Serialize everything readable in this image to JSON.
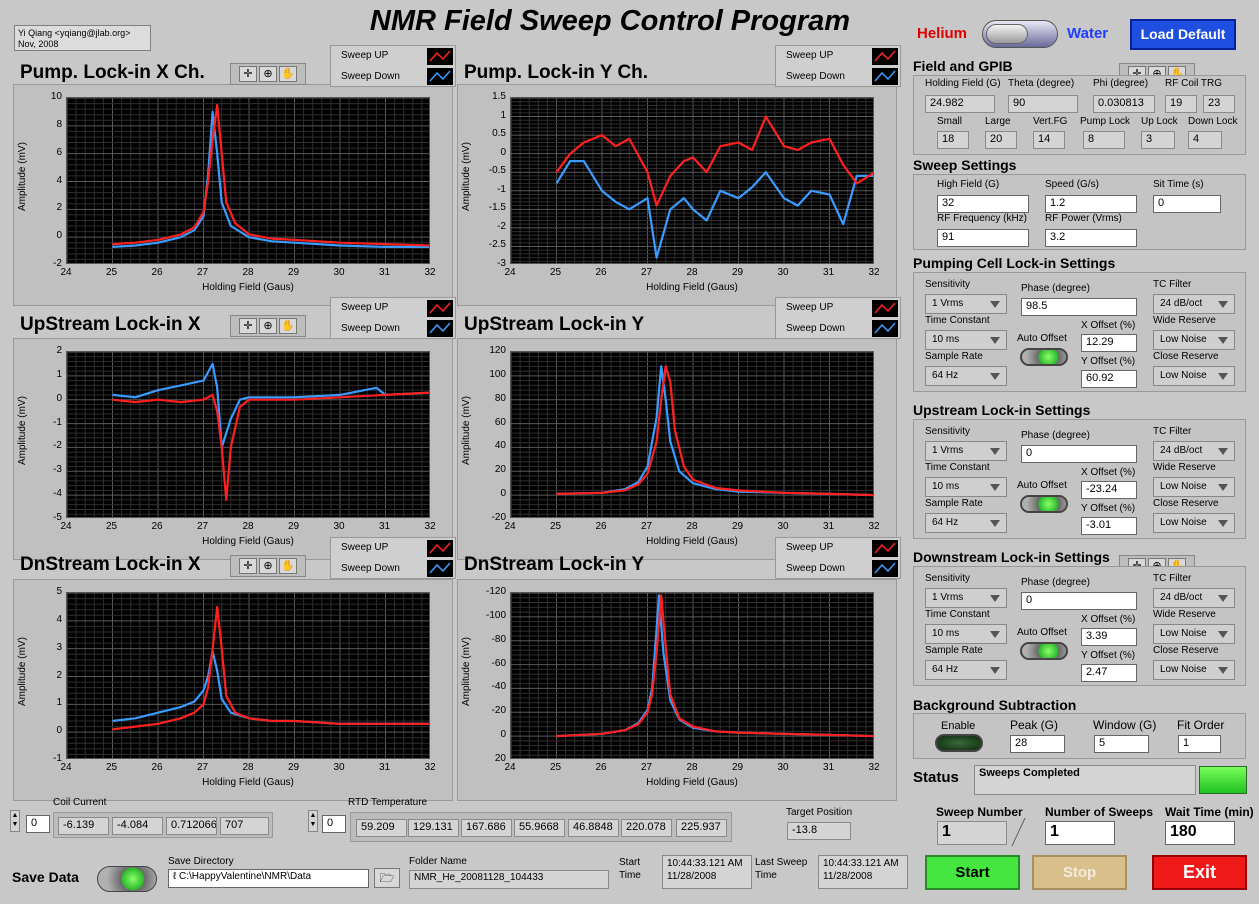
{
  "author": {
    "line1": "Yi Qiang <yqiang@jlab.org>",
    "line2": "Nov, 2008"
  },
  "app_title": "NMR Field Sweep Control Program",
  "mode": {
    "left": "Helium",
    "right": "Water",
    "load_default": "Load Default"
  },
  "legend": {
    "up": "Sweep UP",
    "down": "Sweep Down",
    "up_color": "#ff2020",
    "down_color": "#3a9cff"
  },
  "graphs": [
    {
      "title": "Pump. Lock-in X Ch.",
      "xlabel": "Holding Field (Gaus)",
      "ylabel": "Amplitude (mV)"
    },
    {
      "title": "Pump. Lock-in Y Ch.",
      "xlabel": "Holding Field (Gaus)",
      "ylabel": "Amplitude (mV)"
    },
    {
      "title": "UpStream Lock-in X",
      "xlabel": "Holding Field (Gaus)",
      "ylabel": "Amplitude (mV)"
    },
    {
      "title": "UpStream Lock-in Y",
      "xlabel": "Holding Field (Gaus)",
      "ylabel": "Amplitude (mV)"
    },
    {
      "title": "DnStream Lock-in X",
      "xlabel": "Holding Field (Gaus)",
      "ylabel": "Amplitude (mV)"
    },
    {
      "title": "DnStream Lock-in Y",
      "xlabel": "Holding Field (Gaus)",
      "ylabel": "Amplitude (mV)"
    }
  ],
  "chart_data": [
    {
      "type": "line",
      "title": "Pump. Lock-in X Ch.",
      "xlabel": "Holding Field (Gaus)",
      "ylabel": "Amplitude (mV)",
      "xlim": [
        24,
        32
      ],
      "ylim": [
        -2,
        10
      ],
      "xticks": [
        "24",
        "25",
        "26",
        "27",
        "28",
        "29",
        "30",
        "31",
        "32"
      ],
      "yticks": [
        "-2",
        "0",
        "2",
        "4",
        "6",
        "8",
        "10"
      ],
      "series": [
        {
          "name": "Sweep UP",
          "x": [
            25,
            25.5,
            26,
            26.5,
            26.8,
            27,
            27.1,
            27.2,
            27.3,
            27.4,
            27.5,
            27.7,
            28,
            28.5,
            29,
            30,
            31,
            32
          ],
          "y": [
            -0.5,
            -0.4,
            -0.2,
            0.2,
            0.7,
            1.8,
            4,
            7,
            9.5,
            6,
            2.5,
            1,
            0.2,
            -0.1,
            -0.2,
            -0.4,
            -0.5,
            -0.6
          ]
        },
        {
          "name": "Sweep Down",
          "x": [
            25,
            25.5,
            26,
            26.5,
            26.8,
            27,
            27.1,
            27.2,
            27.3,
            27.4,
            27.6,
            28,
            28.5,
            29,
            30,
            31,
            32
          ],
          "y": [
            -0.7,
            -0.6,
            -0.4,
            0,
            0.5,
            1.5,
            4.5,
            9,
            6,
            2.5,
            0.8,
            0,
            -0.3,
            -0.4,
            -0.6,
            -0.7,
            -0.7
          ]
        }
      ]
    },
    {
      "type": "line",
      "title": "Pump. Lock-in Y Ch.",
      "xlabel": "Holding Field (Gaus)",
      "ylabel": "Amplitude (mV)",
      "xlim": [
        24,
        32
      ],
      "ylim": [
        -3,
        1.5
      ],
      "xticks": [
        "24",
        "25",
        "26",
        "27",
        "28",
        "29",
        "30",
        "31",
        "32"
      ],
      "yticks": [
        "-3",
        "-2.5",
        "-2",
        "-1.5",
        "-1",
        "-0.5",
        "0",
        "0.5",
        "1",
        "1.5"
      ],
      "series": [
        {
          "name": "Sweep UP",
          "x": [
            25,
            25.3,
            25.6,
            26,
            26.3,
            26.6,
            27,
            27.2,
            27.5,
            27.8,
            28,
            28.3,
            28.6,
            29,
            29.3,
            29.6,
            30,
            30.3,
            30.6,
            31,
            31.3,
            31.6,
            32
          ],
          "y": [
            -0.5,
            0,
            0.3,
            0.5,
            0.2,
            0.4,
            -0.5,
            -1.4,
            -0.6,
            -0.2,
            -0.1,
            -0.5,
            0.2,
            0.3,
            0.1,
            1,
            0.2,
            0.1,
            0.3,
            0.4,
            -0.3,
            -0.8,
            -0.5
          ]
        },
        {
          "name": "Sweep Down",
          "x": [
            25,
            25.3,
            25.6,
            26,
            26.3,
            26.6,
            27,
            27.2,
            27.5,
            27.8,
            28,
            28.3,
            28.6,
            29,
            29.3,
            29.6,
            30,
            30.3,
            30.6,
            31,
            31.3,
            31.6,
            32
          ],
          "y": [
            -0.8,
            -0.2,
            -0.2,
            -1,
            -1.3,
            -1.5,
            -1.2,
            -2.8,
            -1.5,
            -1.2,
            -1.5,
            -1.8,
            -1,
            -1.2,
            -0.9,
            -0.5,
            -1.2,
            -1.4,
            -1,
            -1.1,
            -1.9,
            -0.6,
            -0.6
          ]
        }
      ]
    },
    {
      "type": "line",
      "title": "UpStream Lock-in X",
      "xlabel": "Holding Field (Gaus)",
      "ylabel": "Amplitude (mV)",
      "xlim": [
        24,
        32
      ],
      "ylim": [
        -5,
        2
      ],
      "xticks": [
        "24",
        "25",
        "26",
        "27",
        "28",
        "29",
        "30",
        "31",
        "32"
      ],
      "yticks": [
        "-5",
        "-4",
        "-3",
        "-2",
        "-1",
        "0",
        "1",
        "2"
      ],
      "series": [
        {
          "name": "Sweep UP",
          "x": [
            25,
            25.5,
            26,
            26.5,
            27,
            27.2,
            27.3,
            27.4,
            27.5,
            27.6,
            27.8,
            28,
            28.5,
            29,
            30,
            31,
            32
          ],
          "y": [
            0,
            -0.1,
            0,
            -0.1,
            0,
            0.2,
            -0.5,
            -2,
            -4.2,
            -2,
            -0.3,
            0,
            0,
            0,
            0.1,
            0.2,
            0.3
          ]
        },
        {
          "name": "Sweep Down",
          "x": [
            25,
            25.5,
            26,
            26.5,
            27,
            27.2,
            27.3,
            27.4,
            27.6,
            27.8,
            28,
            28.5,
            29,
            30,
            30.8,
            31,
            32
          ],
          "y": [
            0.2,
            0.1,
            0.4,
            0.6,
            0.8,
            1.5,
            0.5,
            -2,
            -0.8,
            0,
            0.1,
            0.1,
            0.1,
            0.2,
            0.5,
            0.2,
            0.3
          ]
        }
      ]
    },
    {
      "type": "line",
      "title": "UpStream Lock-in Y",
      "xlabel": "Holding Field (Gaus)",
      "ylabel": "Amplitude (mV)",
      "xlim": [
        24,
        32
      ],
      "ylim": [
        -20,
        120
      ],
      "xticks": [
        "24",
        "25",
        "26",
        "27",
        "28",
        "29",
        "30",
        "31",
        "32"
      ],
      "yticks": [
        "-20",
        "0",
        "20",
        "40",
        "60",
        "80",
        "100",
        "120"
      ],
      "series": [
        {
          "name": "Sweep UP",
          "x": [
            25,
            26,
            26.5,
            26.8,
            27,
            27.2,
            27.3,
            27.4,
            27.5,
            27.6,
            27.8,
            28,
            28.5,
            29,
            30,
            31,
            32
          ],
          "y": [
            1,
            2,
            4,
            9,
            18,
            45,
            80,
            108,
            95,
            55,
            24,
            13,
            6,
            4,
            2,
            1,
            0
          ]
        },
        {
          "name": "Sweep Down",
          "x": [
            25,
            26,
            26.5,
            26.8,
            27,
            27.2,
            27.3,
            27.4,
            27.5,
            27.7,
            28,
            28.5,
            29,
            30,
            31,
            32
          ],
          "y": [
            1,
            2,
            5,
            11,
            24,
            65,
            108,
            80,
            45,
            20,
            10,
            5,
            3,
            2,
            1,
            0
          ]
        }
      ]
    },
    {
      "type": "line",
      "title": "DnStream Lock-in X",
      "xlabel": "Holding Field (Gaus)",
      "ylabel": "Amplitude (mV)",
      "xlim": [
        24,
        32
      ],
      "ylim": [
        -1,
        5
      ],
      "xticks": [
        "24",
        "25",
        "26",
        "27",
        "28",
        "29",
        "30",
        "31",
        "32"
      ],
      "yticks": [
        "-1",
        "0",
        "1",
        "2",
        "3",
        "4",
        "5"
      ],
      "series": [
        {
          "name": "Sweep UP",
          "x": [
            25,
            25.5,
            26,
            26.5,
            26.8,
            27,
            27.1,
            27.2,
            27.3,
            27.4,
            27.5,
            27.7,
            28,
            28.5,
            29,
            30,
            31,
            32
          ],
          "y": [
            0.1,
            0.2,
            0.3,
            0.5,
            0.7,
            1,
            1.6,
            3,
            4.5,
            3,
            1.3,
            0.7,
            0.5,
            0.4,
            0.4,
            0.3,
            0.3,
            0.3
          ]
        },
        {
          "name": "Sweep Down",
          "x": [
            25,
            25.5,
            26,
            26.5,
            26.8,
            27,
            27.1,
            27.2,
            27.3,
            27.4,
            27.6,
            28,
            28.5,
            29,
            30,
            31,
            32
          ],
          "y": [
            0.4,
            0.5,
            0.7,
            0.9,
            1.1,
            1.5,
            2,
            2.9,
            2.2,
            1.2,
            0.7,
            0.5,
            0.4,
            0.4,
            0.3,
            0.3,
            0.3
          ]
        }
      ]
    },
    {
      "type": "line",
      "title": "DnStream Lock-in Y",
      "xlabel": "Holding Field (Gaus)",
      "ylabel": "Amplitude (mV)",
      "xlim": [
        24,
        32
      ],
      "ylim": [
        20,
        -120
      ],
      "xticks": [
        "24",
        "25",
        "26",
        "27",
        "28",
        "29",
        "30",
        "31",
        "32"
      ],
      "yticks": [
        "20",
        "0",
        "-20",
        "-40",
        "-60",
        "-80",
        "-100",
        "-120"
      ],
      "series": [
        {
          "name": "Sweep UP",
          "x": [
            25,
            26,
            26.5,
            26.8,
            27,
            27.1,
            27.2,
            27.3,
            27.4,
            27.5,
            27.7,
            28,
            28.5,
            29,
            30,
            31,
            32
          ],
          "y": [
            0,
            -2,
            -5,
            -10,
            -20,
            -35,
            -70,
            -118,
            -75,
            -35,
            -15,
            -8,
            -4,
            -3,
            -2,
            -1,
            0
          ]
        },
        {
          "name": "Sweep Down",
          "x": [
            25,
            26,
            26.5,
            26.8,
            27,
            27.1,
            27.2,
            27.25,
            27.35,
            27.5,
            27.7,
            28,
            28.5,
            29,
            30,
            31,
            32
          ],
          "y": [
            0,
            -2,
            -5,
            -11,
            -22,
            -40,
            -90,
            -118,
            -70,
            -30,
            -14,
            -7,
            -4,
            -3,
            -2,
            -1,
            0
          ]
        }
      ]
    }
  ],
  "field_gpib": {
    "title": "Field and GPIB",
    "holding_field": {
      "label": "Holding Field (G)",
      "value": "24.982"
    },
    "theta": {
      "label": "Theta (degree)",
      "value": "90"
    },
    "phi": {
      "label": "Phi (degree)",
      "value": "0.030813"
    },
    "rf_coil": {
      "label": "RF Coil TRG",
      "v1": "19",
      "v2": "23"
    },
    "small": {
      "label": "Small",
      "value": "18"
    },
    "large": {
      "label": "Large",
      "value": "20"
    },
    "vert_fg": {
      "label": "Vert.FG",
      "value": "14"
    },
    "pump_lock": {
      "label": "Pump Lock",
      "value": "8"
    },
    "up_lock": {
      "label": "Up Lock",
      "value": "3"
    },
    "down_lock": {
      "label": "Down Lock",
      "value": "4"
    }
  },
  "sweep": {
    "title": "Sweep Settings",
    "high_field": {
      "label": "High Field (G)",
      "value": "32"
    },
    "speed": {
      "label": "Speed (G/s)",
      "value": "1.2"
    },
    "sit_time": {
      "label": "Sit Time (s)",
      "value": "0"
    },
    "rf_freq": {
      "label": "RF Frequency (kHz)",
      "value": "91"
    },
    "rf_power": {
      "label": "RF Power (Vrms)",
      "value": "3.2"
    }
  },
  "lockins": [
    {
      "title": "Pumping Cell Lock-in Settings",
      "sensitivity": "1 Vrms",
      "time_constant": "10 ms",
      "sample_rate": "64 Hz",
      "phase": "98.5",
      "x_offset": "12.29",
      "y_offset": "60.92",
      "tc_filter": "24 dB/oct",
      "wide_reserve": "Low Noise",
      "close_reserve": "Low Noise"
    },
    {
      "title": "Upstream Lock-in Settings",
      "sensitivity": "1 Vrms",
      "time_constant": "10 ms",
      "sample_rate": "64 Hz",
      "phase": "0",
      "x_offset": "-23.24",
      "y_offset": "-3.01",
      "tc_filter": "24 dB/oct",
      "wide_reserve": "Low Noise",
      "close_reserve": "Low Noise"
    },
    {
      "title": "Downstream Lock-in Settings",
      "sensitivity": "1 Vrms",
      "time_constant": "10 ms",
      "sample_rate": "64 Hz",
      "phase": "0",
      "x_offset": "3.39",
      "y_offset": "2.47",
      "tc_filter": "24 dB/oct",
      "wide_reserve": "Low Noise",
      "close_reserve": "Low Noise"
    }
  ],
  "lockin_labels": {
    "sensitivity": "Sensitivity",
    "time_constant": "Time Constant",
    "sample_rate": "Sample Rate",
    "phase": "Phase (degree)",
    "auto_offset": "Auto Offset",
    "x_offset": "X Offset (%)",
    "y_offset": "Y Offset (%)",
    "tc_filter": "TC Filter",
    "wide_reserve": "Wide Reserve",
    "close_reserve": "Close Reserve"
  },
  "bg": {
    "title": "Background Subtraction",
    "enable": "Enable",
    "peak": {
      "label": "Peak (G)",
      "value": "28"
    },
    "window": {
      "label": "Window (G)",
      "value": "5"
    },
    "fit_order": {
      "label": "Fit Order",
      "value": "1"
    }
  },
  "status": {
    "label": "Status",
    "value": "Sweeps Completed"
  },
  "counts": {
    "sweep_number": {
      "label": "Sweep Number",
      "value": "1"
    },
    "num_sweeps": {
      "label": "Number of Sweeps",
      "value": "1"
    },
    "wait_time": {
      "label": "Wait Time (min)",
      "value": "180"
    }
  },
  "buttons": {
    "start": "Start",
    "stop": "Stop",
    "exit": "Exit"
  },
  "coil": {
    "label": "Coil Current",
    "index": "0",
    "values": [
      "-6.139",
      "-4.084",
      "0.712066",
      "707"
    ]
  },
  "rtd": {
    "label": "RTD Temperature",
    "index": "0",
    "values": [
      "59.209",
      "129.131",
      "167.686",
      "55.9668",
      "46.8848",
      "220.078",
      "225.937"
    ]
  },
  "target": {
    "label": "Target Position",
    "value": "-13.8"
  },
  "save": {
    "label": "Save Data",
    "dir_label": "Save Directory",
    "dir": "C:\\HappyValentine\\NMR\\Data",
    "folder_label": "Folder Name",
    "folder": "NMR_He_20081128_104433"
  },
  "start_time": {
    "label1": "Start",
    "label2": "Time",
    "line1": "10:44:33.121 AM",
    "line2": "11/28/2008"
  },
  "last_sweep": {
    "label1": "Last Sweep",
    "label2": "Time",
    "line1": "10:44:33.121 AM",
    "line2": "11/28/2008"
  }
}
